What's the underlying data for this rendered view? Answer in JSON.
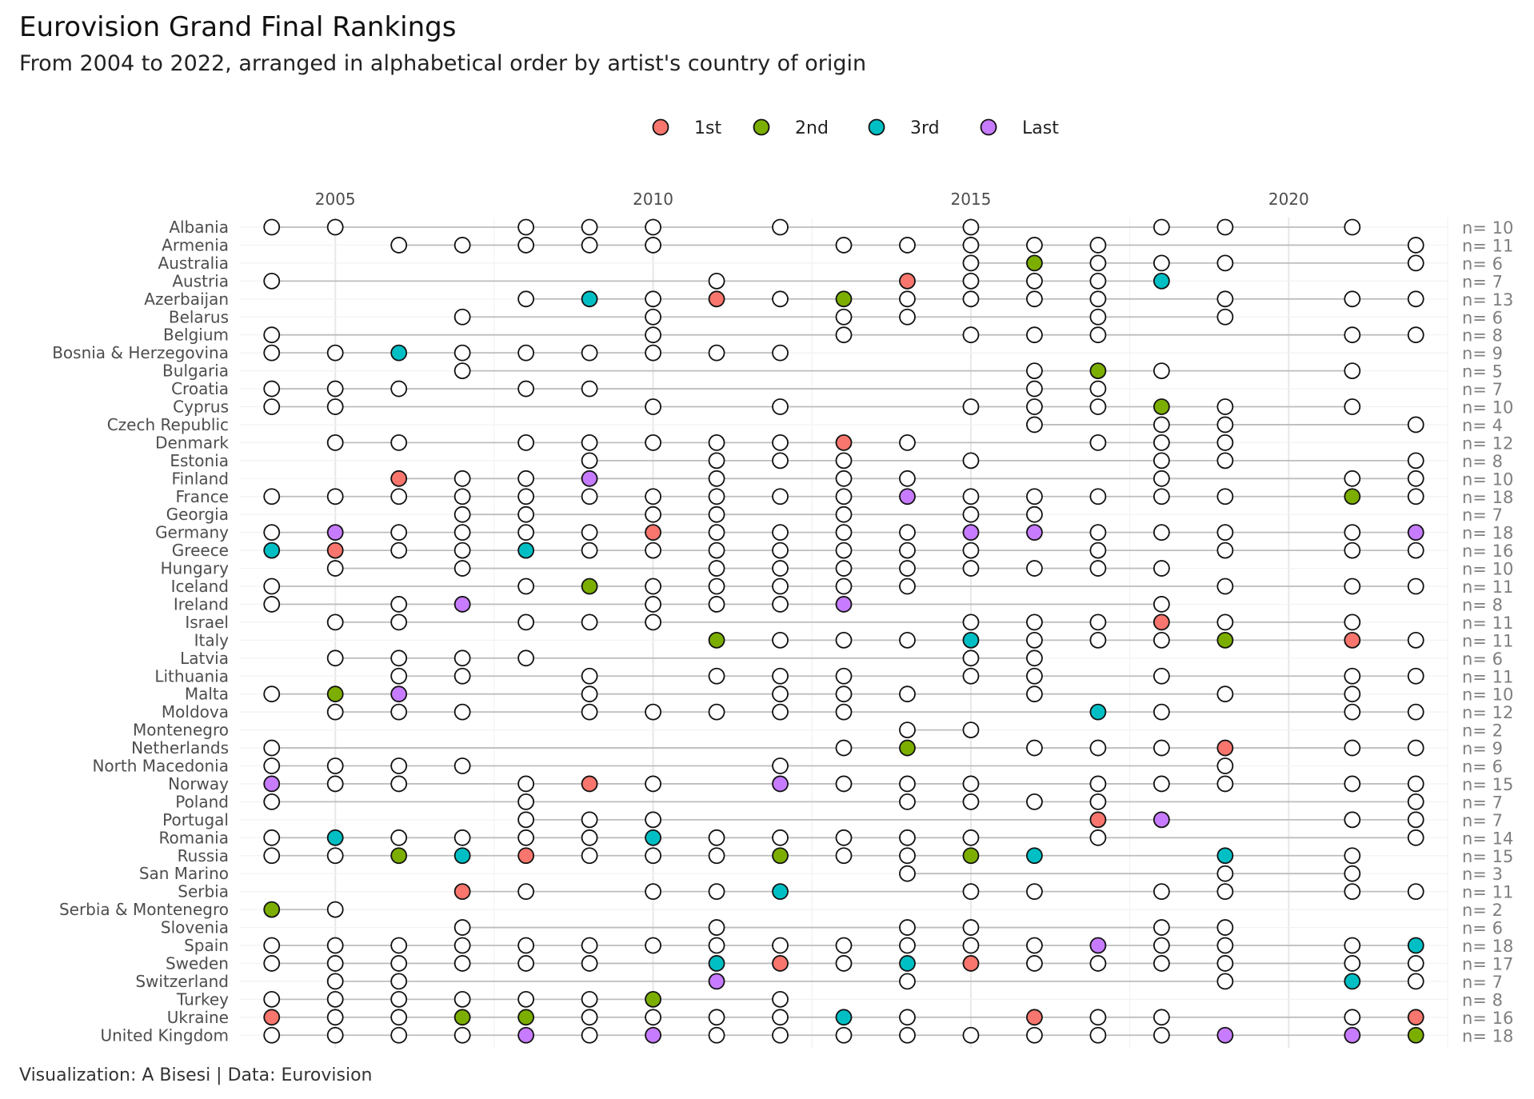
{
  "title": "Eurovision Grand Final Rankings",
  "subtitle": "From 2004 to 2022, arranged in alphabetical order by artist's country of origin",
  "caption": "Visualization: A Bisesi | Data: Eurovision",
  "colors": {
    "1st": "#F8766D",
    "2nd": "#7CAE00",
    "3rd": "#00BFC4",
    "Last": "#C77CFF",
    "other": "#FFFFFF"
  },
  "chart_data": {
    "type": "scatter",
    "x_ticks": [
      2005,
      2010,
      2015,
      2020
    ],
    "xlim": [
      2003.5,
      2022.5
    ],
    "legend": {
      "position": "top",
      "entries": [
        "1st",
        "2nd",
        "3rd",
        "Last"
      ]
    },
    "count_prefix": "n= ",
    "rows": [
      {
        "country": "Albania",
        "years": [
          2004,
          2005,
          2008,
          2009,
          2010,
          2012,
          2015,
          2018,
          2019,
          2021
        ],
        "ranks": {}
      },
      {
        "country": "Armenia",
        "years": [
          2006,
          2007,
          2008,
          2009,
          2010,
          2013,
          2014,
          2015,
          2016,
          2017,
          2022
        ],
        "ranks": {}
      },
      {
        "country": "Australia",
        "years": [
          2015,
          2016,
          2017,
          2018,
          2019,
          2022
        ],
        "ranks": {
          "2016": "2nd"
        }
      },
      {
        "country": "Austria",
        "years": [
          2004,
          2011,
          2014,
          2015,
          2016,
          2017,
          2018
        ],
        "ranks": {
          "2014": "1st",
          "2018": "3rd"
        }
      },
      {
        "country": "Azerbaijan",
        "years": [
          2008,
          2009,
          2010,
          2011,
          2012,
          2013,
          2014,
          2015,
          2016,
          2017,
          2019,
          2021,
          2022
        ],
        "ranks": {
          "2009": "3rd",
          "2011": "1st",
          "2013": "2nd"
        }
      },
      {
        "country": "Belarus",
        "years": [
          2007,
          2010,
          2013,
          2014,
          2017,
          2019
        ],
        "ranks": {}
      },
      {
        "country": "Belgium",
        "years": [
          2004,
          2010,
          2013,
          2015,
          2016,
          2017,
          2021,
          2022
        ],
        "ranks": {}
      },
      {
        "country": "Bosnia & Herzegovina",
        "years": [
          2004,
          2005,
          2006,
          2007,
          2008,
          2009,
          2010,
          2011,
          2012
        ],
        "ranks": {
          "2006": "3rd"
        }
      },
      {
        "country": "Bulgaria",
        "years": [
          2007,
          2016,
          2017,
          2018,
          2021
        ],
        "ranks": {
          "2017": "2nd"
        }
      },
      {
        "country": "Croatia",
        "years": [
          2004,
          2005,
          2006,
          2008,
          2009,
          2016,
          2017
        ],
        "ranks": {}
      },
      {
        "country": "Cyprus",
        "years": [
          2004,
          2005,
          2010,
          2012,
          2015,
          2016,
          2017,
          2018,
          2019,
          2021
        ],
        "ranks": {
          "2018": "2nd"
        }
      },
      {
        "country": "Czech Republic",
        "years": [
          2016,
          2018,
          2019,
          2022
        ],
        "ranks": {}
      },
      {
        "country": "Denmark",
        "years": [
          2005,
          2006,
          2008,
          2009,
          2010,
          2011,
          2012,
          2013,
          2014,
          2017,
          2018,
          2019
        ],
        "ranks": {
          "2013": "1st"
        }
      },
      {
        "country": "Estonia",
        "years": [
          2009,
          2011,
          2012,
          2013,
          2015,
          2018,
          2019,
          2022
        ],
        "ranks": {}
      },
      {
        "country": "Finland",
        "years": [
          2006,
          2007,
          2008,
          2009,
          2011,
          2013,
          2014,
          2018,
          2021,
          2022
        ],
        "ranks": {
          "2006": "1st",
          "2009": "Last"
        }
      },
      {
        "country": "France",
        "years": [
          2004,
          2005,
          2006,
          2007,
          2008,
          2009,
          2010,
          2011,
          2012,
          2013,
          2014,
          2015,
          2016,
          2017,
          2018,
          2019,
          2021,
          2022
        ],
        "ranks": {
          "2014": "Last",
          "2021": "2nd"
        }
      },
      {
        "country": "Georgia",
        "years": [
          2007,
          2008,
          2010,
          2011,
          2013,
          2015,
          2016
        ],
        "ranks": {}
      },
      {
        "country": "Germany",
        "years": [
          2004,
          2005,
          2006,
          2007,
          2008,
          2009,
          2010,
          2011,
          2012,
          2013,
          2014,
          2015,
          2016,
          2017,
          2018,
          2019,
          2021,
          2022
        ],
        "ranks": {
          "2005": "Last",
          "2010": "1st",
          "2015": "Last",
          "2016": "Last",
          "2022": "Last"
        }
      },
      {
        "country": "Greece",
        "years": [
          2004,
          2005,
          2006,
          2007,
          2008,
          2009,
          2010,
          2011,
          2012,
          2013,
          2014,
          2015,
          2017,
          2019,
          2021,
          2022
        ],
        "ranks": {
          "2004": "3rd",
          "2005": "1st",
          "2008": "3rd"
        }
      },
      {
        "country": "Hungary",
        "years": [
          2005,
          2007,
          2011,
          2012,
          2013,
          2014,
          2015,
          2016,
          2017,
          2018
        ],
        "ranks": {}
      },
      {
        "country": "Iceland",
        "years": [
          2004,
          2008,
          2009,
          2010,
          2011,
          2012,
          2013,
          2014,
          2019,
          2021,
          2022
        ],
        "ranks": {
          "2009": "2nd"
        }
      },
      {
        "country": "Ireland",
        "years": [
          2004,
          2006,
          2007,
          2010,
          2011,
          2012,
          2013,
          2018
        ],
        "ranks": {
          "2007": "Last",
          "2013": "Last"
        }
      },
      {
        "country": "Israel",
        "years": [
          2005,
          2006,
          2008,
          2009,
          2010,
          2015,
          2016,
          2017,
          2018,
          2019,
          2021
        ],
        "ranks": {
          "2018": "1st"
        }
      },
      {
        "country": "Italy",
        "years": [
          2011,
          2012,
          2013,
          2014,
          2015,
          2016,
          2017,
          2018,
          2019,
          2021,
          2022
        ],
        "ranks": {
          "2011": "2nd",
          "2015": "3rd",
          "2019": "2nd",
          "2021": "1st"
        }
      },
      {
        "country": "Latvia",
        "years": [
          2005,
          2006,
          2007,
          2008,
          2015,
          2016
        ],
        "ranks": {}
      },
      {
        "country": "Lithuania",
        "years": [
          2006,
          2007,
          2009,
          2011,
          2012,
          2013,
          2015,
          2016,
          2018,
          2021,
          2022
        ],
        "ranks": {}
      },
      {
        "country": "Malta",
        "years": [
          2004,
          2005,
          2006,
          2009,
          2012,
          2013,
          2014,
          2016,
          2019,
          2021
        ],
        "ranks": {
          "2005": "2nd",
          "2006": "Last"
        }
      },
      {
        "country": "Moldova",
        "years": [
          2005,
          2006,
          2007,
          2009,
          2010,
          2011,
          2012,
          2013,
          2017,
          2018,
          2021,
          2022
        ],
        "ranks": {
          "2017": "3rd"
        }
      },
      {
        "country": "Montenegro",
        "years": [
          2014,
          2015
        ],
        "ranks": {}
      },
      {
        "country": "Netherlands",
        "years": [
          2004,
          2013,
          2014,
          2016,
          2017,
          2018,
          2019,
          2021,
          2022
        ],
        "ranks": {
          "2014": "2nd",
          "2019": "1st"
        }
      },
      {
        "country": "North Macedonia",
        "years": [
          2004,
          2005,
          2006,
          2007,
          2012,
          2019
        ],
        "ranks": {}
      },
      {
        "country": "Norway",
        "years": [
          2004,
          2005,
          2006,
          2008,
          2009,
          2010,
          2012,
          2013,
          2014,
          2015,
          2017,
          2018,
          2019,
          2021,
          2022
        ],
        "ranks": {
          "2004": "Last",
          "2009": "1st",
          "2012": "Last"
        }
      },
      {
        "country": "Poland",
        "years": [
          2004,
          2008,
          2014,
          2015,
          2016,
          2017,
          2022
        ],
        "ranks": {}
      },
      {
        "country": "Portugal",
        "years": [
          2008,
          2009,
          2010,
          2017,
          2018,
          2021,
          2022
        ],
        "ranks": {
          "2017": "1st",
          "2018": "Last"
        }
      },
      {
        "country": "Romania",
        "years": [
          2004,
          2005,
          2006,
          2007,
          2008,
          2009,
          2010,
          2011,
          2012,
          2013,
          2014,
          2015,
          2017,
          2022
        ],
        "ranks": {
          "2005": "3rd",
          "2010": "3rd"
        }
      },
      {
        "country": "Russia",
        "years": [
          2004,
          2005,
          2006,
          2007,
          2008,
          2009,
          2010,
          2011,
          2012,
          2013,
          2014,
          2015,
          2016,
          2019,
          2021
        ],
        "ranks": {
          "2006": "2nd",
          "2007": "3rd",
          "2008": "1st",
          "2012": "2nd",
          "2015": "2nd",
          "2016": "3rd",
          "2019": "3rd"
        }
      },
      {
        "country": "San Marino",
        "years": [
          2014,
          2019,
          2021
        ],
        "ranks": {}
      },
      {
        "country": "Serbia",
        "years": [
          2007,
          2008,
          2010,
          2011,
          2012,
          2015,
          2016,
          2018,
          2019,
          2021,
          2022
        ],
        "ranks": {
          "2007": "1st",
          "2012": "3rd"
        }
      },
      {
        "country": "Serbia & Montenegro",
        "years": [
          2004,
          2005
        ],
        "ranks": {
          "2004": "2nd"
        }
      },
      {
        "country": "Slovenia",
        "years": [
          2007,
          2011,
          2014,
          2015,
          2018,
          2019
        ],
        "ranks": {}
      },
      {
        "country": "Spain",
        "years": [
          2004,
          2005,
          2006,
          2007,
          2008,
          2009,
          2010,
          2011,
          2012,
          2013,
          2014,
          2015,
          2016,
          2017,
          2018,
          2019,
          2021,
          2022
        ],
        "ranks": {
          "2017": "Last",
          "2022": "3rd"
        }
      },
      {
        "country": "Sweden",
        "years": [
          2004,
          2005,
          2006,
          2007,
          2008,
          2009,
          2011,
          2012,
          2013,
          2014,
          2015,
          2016,
          2017,
          2018,
          2019,
          2021,
          2022
        ],
        "ranks": {
          "2011": "3rd",
          "2012": "1st",
          "2014": "3rd",
          "2015": "1st"
        }
      },
      {
        "country": "Switzerland",
        "years": [
          2005,
          2006,
          2011,
          2014,
          2019,
          2021,
          2022
        ],
        "ranks": {
          "2011": "Last",
          "2021": "3rd"
        }
      },
      {
        "country": "Turkey",
        "years": [
          2004,
          2005,
          2006,
          2007,
          2008,
          2009,
          2010,
          2012
        ],
        "ranks": {
          "2010": "2nd"
        }
      },
      {
        "country": "Ukraine",
        "years": [
          2004,
          2005,
          2006,
          2007,
          2008,
          2009,
          2010,
          2011,
          2012,
          2013,
          2014,
          2016,
          2017,
          2018,
          2021,
          2022
        ],
        "ranks": {
          "2004": "1st",
          "2007": "2nd",
          "2008": "2nd",
          "2013": "3rd",
          "2016": "1st",
          "2022": "1st"
        }
      },
      {
        "country": "United Kingdom",
        "years": [
          2004,
          2005,
          2006,
          2007,
          2008,
          2009,
          2010,
          2011,
          2012,
          2013,
          2014,
          2015,
          2016,
          2017,
          2018,
          2019,
          2021,
          2022
        ],
        "ranks": {
          "2008": "Last",
          "2010": "Last",
          "2019": "Last",
          "2021": "Last",
          "2022": "2nd"
        }
      }
    ]
  }
}
